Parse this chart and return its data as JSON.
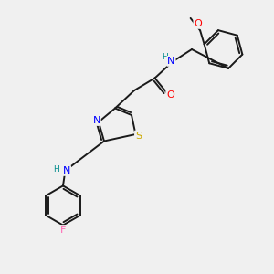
{
  "bg_color": "#f0f0f0",
  "bond_color": "#1a1a1a",
  "atom_colors": {
    "N": "#0000ff",
    "S": "#ccaa00",
    "O": "#ff0000",
    "F": "#ff69b4",
    "H_N": "#008b8b",
    "C": "#1a1a1a"
  },
  "figsize": [
    3.0,
    3.0
  ],
  "dpi": 100,
  "lw": 1.4,
  "font": 7.5
}
